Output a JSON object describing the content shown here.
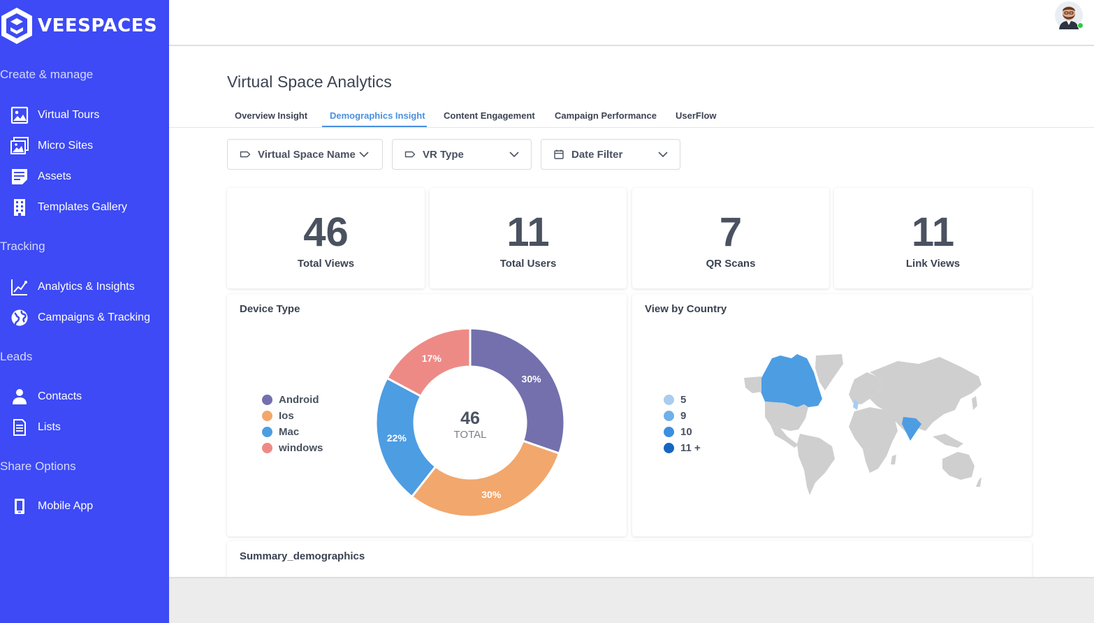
{
  "brand": {
    "name": "VEESPACES"
  },
  "sidebar": {
    "sections": [
      {
        "title": "Create & manage",
        "items": [
          {
            "label": "Virtual Tours",
            "icon": "image-icon"
          },
          {
            "label": "Micro Sites",
            "icon": "gallery-icon"
          },
          {
            "label": "Assets",
            "icon": "document-icon"
          },
          {
            "label": "Templates Gallery",
            "icon": "building-icon"
          }
        ]
      },
      {
        "title": "Tracking",
        "items": [
          {
            "label": "Analytics & Insights",
            "icon": "chart-line-icon"
          },
          {
            "label": "Campaigns & Tracking",
            "icon": "globe-icon"
          }
        ]
      },
      {
        "title": "Leads",
        "items": [
          {
            "label": "Contacts",
            "icon": "person-icon"
          },
          {
            "label": "Lists",
            "icon": "list-icon"
          }
        ]
      },
      {
        "title": "Share Options",
        "items": [
          {
            "label": "Mobile App",
            "icon": "mobile-icon"
          }
        ]
      }
    ]
  },
  "main": {
    "title": "Virtual Space Analytics",
    "tabs": [
      {
        "label": "Overview Insight",
        "active": false
      },
      {
        "label": "Demographics Insight",
        "active": true
      },
      {
        "label": "Content Engagement",
        "active": false
      },
      {
        "label": "Campaign Performance",
        "active": false
      },
      {
        "label": "UserFlow",
        "active": false
      }
    ],
    "filters": [
      {
        "label": "Virtual Space Name",
        "icon": "tag-icon"
      },
      {
        "label": "VR Type",
        "icon": "tag-icon"
      },
      {
        "label": "Date Filter",
        "icon": "calendar-icon"
      }
    ],
    "stats": [
      {
        "value": "46",
        "label": "Total Views"
      },
      {
        "value": "11",
        "label": "Total Users"
      },
      {
        "value": "7",
        "label": "QR Scans"
      },
      {
        "value": "11",
        "label": "Link Views"
      }
    ],
    "device_card": {
      "title": "Device Type",
      "center_value": "46",
      "center_label": "TOTAL"
    },
    "country_card": {
      "title": "View by Country",
      "legend": [
        {
          "label": "5",
          "color": "#a9cdef"
        },
        {
          "label": "9",
          "color": "#6fb0e8"
        },
        {
          "label": "10",
          "color": "#3d8ee0"
        },
        {
          "label": "11 +",
          "color": "#1566c2"
        }
      ]
    },
    "summary_card": {
      "title": "Summary_demographics"
    }
  },
  "chart_data": {
    "type": "pie",
    "title": "Device Type",
    "categories": [
      "Android",
      "Ios",
      "Mac",
      "windows"
    ],
    "values": [
      30,
      30,
      22,
      17
    ],
    "labels": [
      "30%",
      "30%",
      "22%",
      "17%"
    ],
    "colors": [
      "#7370ad",
      "#f2a76c",
      "#4d9de3",
      "#ee8a86"
    ],
    "legend_position": "left"
  }
}
